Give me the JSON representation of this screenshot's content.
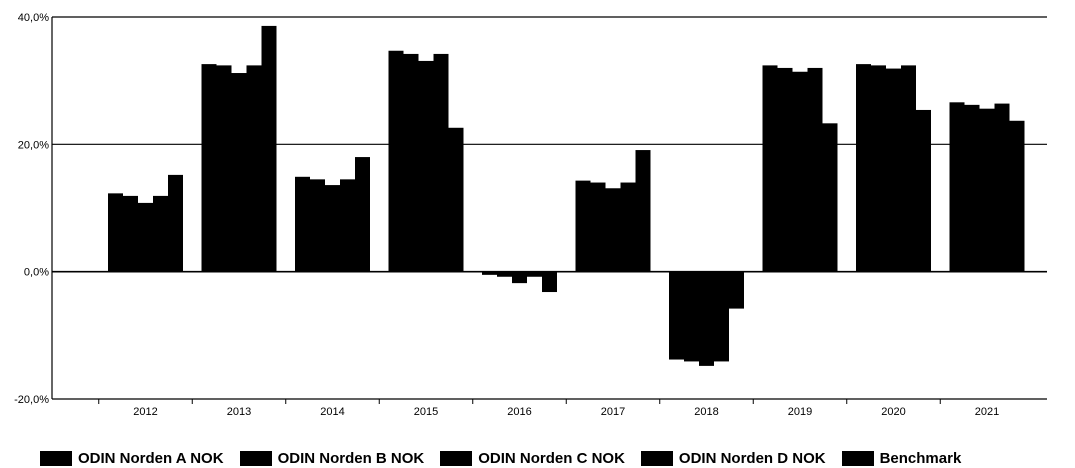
{
  "chart_data": {
    "type": "bar",
    "title": "",
    "xlabel": "",
    "ylabel": "",
    "ylim": [
      -20,
      40
    ],
    "yticks": [
      40,
      20,
      0,
      -20
    ],
    "ytick_labels": [
      "40,0%",
      "20,0%",
      "0,0%",
      "-20,0%"
    ],
    "grid": true,
    "legend_position": "bottom",
    "categories": [
      "2012",
      "2013",
      "2014",
      "2015",
      "2016",
      "2017",
      "2018",
      "2019",
      "2020",
      "2021"
    ],
    "series": [
      {
        "name": "ODIN Norden A NOK",
        "color": "#000000",
        "values": [
          12.3,
          32.6,
          14.9,
          34.7,
          -0.5,
          14.3,
          -13.8,
          32.4,
          32.6,
          26.6
        ]
      },
      {
        "name": "ODIN Norden B NOK",
        "color": "#000000",
        "values": [
          11.9,
          32.4,
          14.5,
          34.2,
          -0.8,
          14.0,
          -14.1,
          32.0,
          32.4,
          26.2
        ]
      },
      {
        "name": "ODIN Norden C NOK",
        "color": "#000000",
        "values": [
          10.8,
          31.2,
          13.6,
          33.1,
          -1.8,
          13.1,
          -14.8,
          31.4,
          31.9,
          25.6
        ]
      },
      {
        "name": "ODIN Norden D NOK",
        "color": "#000000",
        "values": [
          11.9,
          32.4,
          14.5,
          34.2,
          -0.8,
          14.0,
          -14.1,
          32.0,
          32.4,
          26.4
        ]
      },
      {
        "name": "Benchmark",
        "color": "#000000",
        "values": [
          15.2,
          38.6,
          18.0,
          22.6,
          -3.2,
          19.1,
          -5.8,
          23.3,
          25.4,
          23.7
        ]
      }
    ]
  }
}
